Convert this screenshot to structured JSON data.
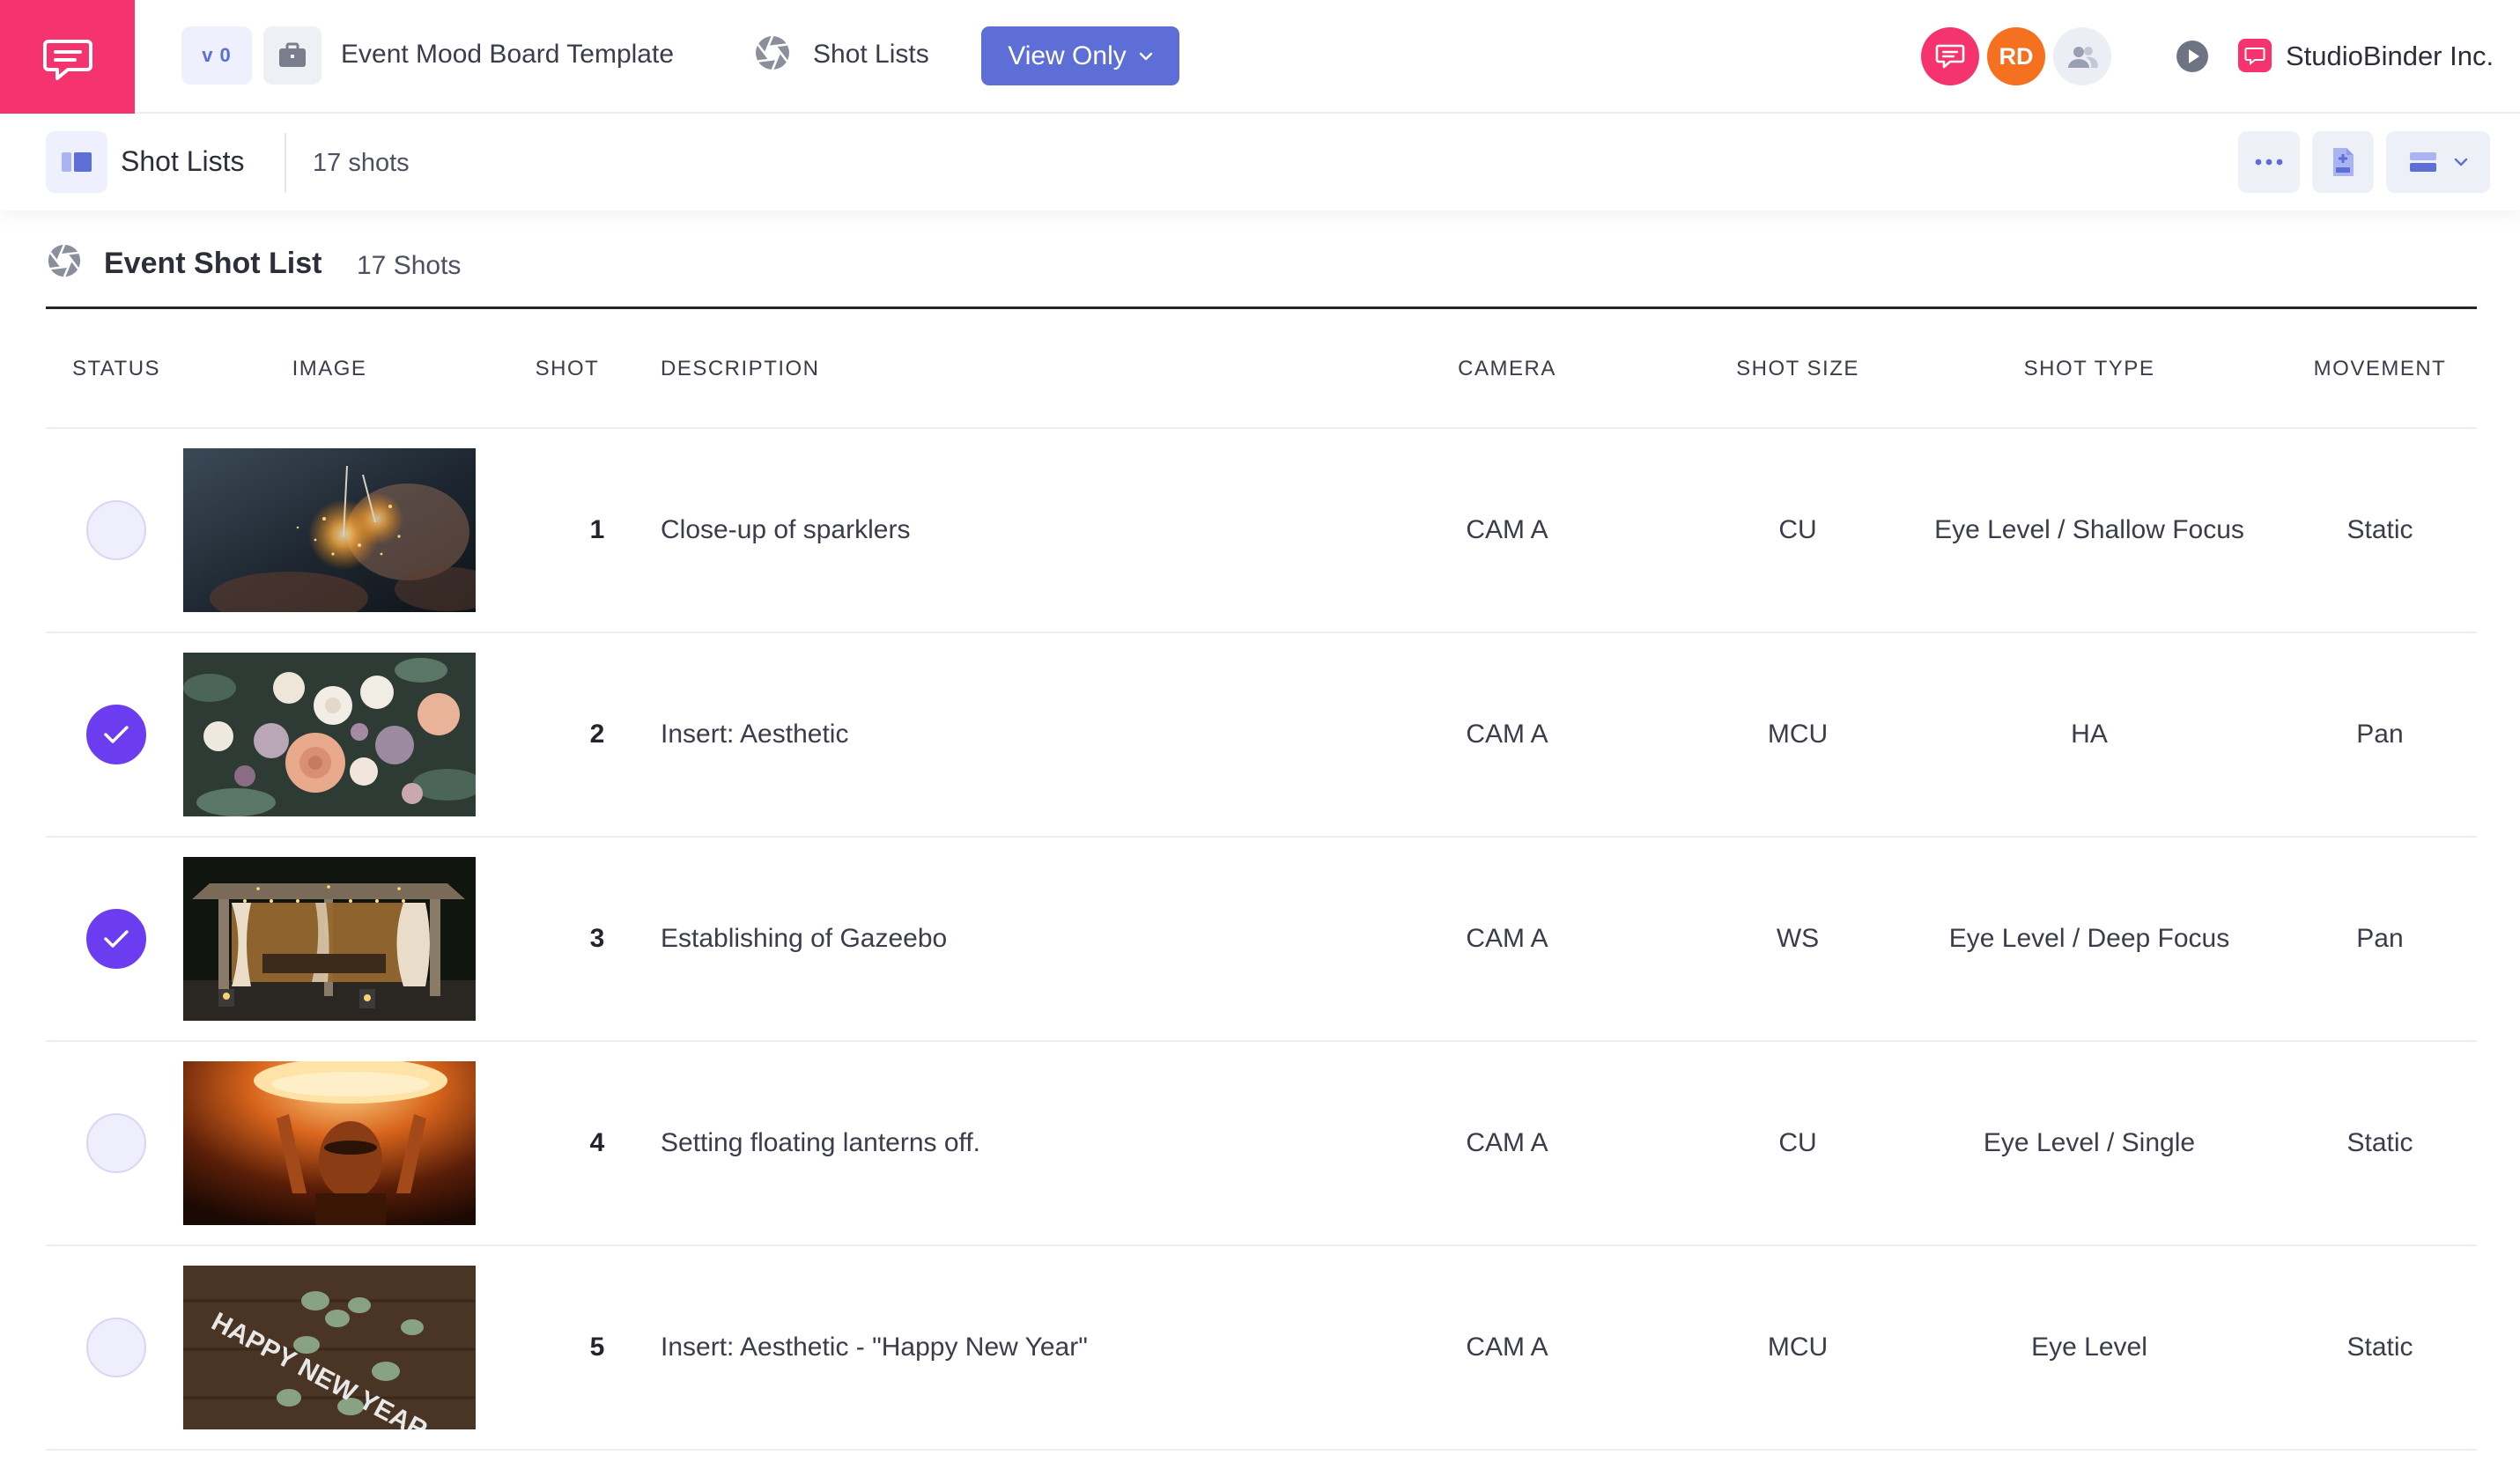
{
  "header": {
    "version": "v 0",
    "project_title": "Event Mood Board Template",
    "nav_label": "Shot Lists",
    "view_mode": "View Only",
    "avatars": [
      {
        "kind": "chat",
        "color": "#f5336f"
      },
      {
        "kind": "initials",
        "label": "RD",
        "color": "#f5701f"
      },
      {
        "kind": "users",
        "color": "#eceef6"
      }
    ],
    "company": "StudioBinder Inc."
  },
  "subheader": {
    "title": "Shot Lists",
    "count": "17 shots"
  },
  "shot_list": {
    "title": "Event Shot List",
    "count": "17 Shots",
    "columns": {
      "status": "STATUS",
      "image": "IMAGE",
      "shot": "SHOT",
      "description": "DESCRIPTION",
      "camera": "CAMERA",
      "shot_size": "SHOT SIZE",
      "shot_type": "SHOT TYPE",
      "movement": "MOVEMENT"
    },
    "rows": [
      {
        "done": false,
        "image": "sparklers",
        "shot": "1",
        "description": "Close-up of sparklers",
        "camera": "CAM A",
        "shot_size": "CU",
        "shot_type": "Eye Level / Shallow Focus",
        "movement": "Static"
      },
      {
        "done": true,
        "image": "flower bouquet",
        "shot": "2",
        "description": "Insert: Aesthetic",
        "camera": "CAM A",
        "shot_size": "MCU",
        "shot_type": "HA",
        "movement": "Pan"
      },
      {
        "done": true,
        "image": "lit gazebo",
        "shot": "3",
        "description": "Establishing of Gazeebo",
        "camera": "CAM A",
        "shot_size": "WS",
        "shot_type": "Eye Level / Deep Focus",
        "movement": "Pan"
      },
      {
        "done": false,
        "image": "floating lantern",
        "shot": "4",
        "description": "Setting floating lanterns off.",
        "camera": "CAM A",
        "shot_size": "CU",
        "shot_type": "Eye Level / Single",
        "movement": "Static"
      },
      {
        "done": false,
        "image": "happy new year letters",
        "image_text": "HAPPY NEW YEAR",
        "shot": "5",
        "description": "Insert: Aesthetic - \"Happy New Year\"",
        "camera": "CAM A",
        "shot_size": "MCU",
        "shot_type": "Eye Level",
        "movement": "Static"
      }
    ]
  },
  "colors": {
    "brand_pink": "#f5336f",
    "accent_blue": "#5d6fd6",
    "status_done": "#6c3df0",
    "avatar_orange": "#f5701f"
  }
}
